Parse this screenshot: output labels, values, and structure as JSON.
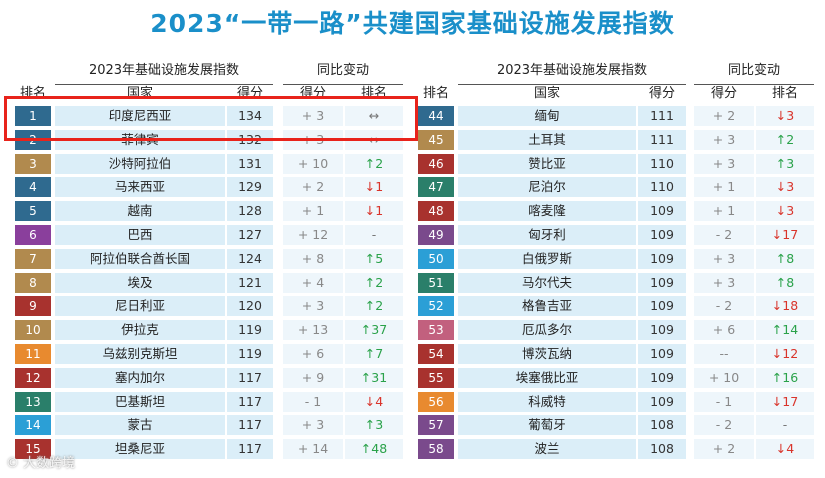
{
  "title": "2023“一带一路”共建国家基础设施发展指数",
  "headers": {
    "group_index": "2023年基础设施发展指数",
    "group_change": "同比变动",
    "rank": "排名",
    "country": "国家",
    "score": "得分",
    "chg_score": "得分",
    "chg_rank": "排名"
  },
  "left_rows": [
    {
      "rank": "1",
      "country": "印度尼西亚",
      "score": "134",
      "chg": "+ 3",
      "move": "↔",
      "dir": "flat",
      "color": "#2f6a8f"
    },
    {
      "rank": "2",
      "country": "菲律宾",
      "score": "132",
      "chg": "+ 3",
      "move": "↔",
      "dir": "flat",
      "color": "#2f6a8f"
    },
    {
      "rank": "3",
      "country": "沙特阿拉伯",
      "score": "131",
      "chg": "+ 10",
      "move": "↑2",
      "dir": "up",
      "color": "#b18a4e"
    },
    {
      "rank": "4",
      "country": "马来西亚",
      "score": "129",
      "chg": "+ 2",
      "move": "↓1",
      "dir": "down",
      "color": "#2f6a8f"
    },
    {
      "rank": "5",
      "country": "越南",
      "score": "128",
      "chg": "+ 1",
      "move": "↓1",
      "dir": "down",
      "color": "#2f6a8f"
    },
    {
      "rank": "6",
      "country": "巴西",
      "score": "127",
      "chg": "+ 12",
      "move": "-",
      "dir": "flat",
      "color": "#8a3f9c"
    },
    {
      "rank": "7",
      "country": "阿拉伯联合酋长国",
      "score": "124",
      "chg": "+ 8",
      "move": "↑5",
      "dir": "up",
      "color": "#b18a4e"
    },
    {
      "rank": "8",
      "country": "埃及",
      "score": "121",
      "chg": "+ 4",
      "move": "↑2",
      "dir": "up",
      "color": "#b18a4e"
    },
    {
      "rank": "9",
      "country": "尼日利亚",
      "score": "120",
      "chg": "+ 3",
      "move": "↑2",
      "dir": "up",
      "color": "#a8322e"
    },
    {
      "rank": "10",
      "country": "伊拉克",
      "score": "119",
      "chg": "+ 13",
      "move": "↑37",
      "dir": "up",
      "color": "#b18a4e"
    },
    {
      "rank": "11",
      "country": "乌兹别克斯坦",
      "score": "119",
      "chg": "+ 6",
      "move": "↑7",
      "dir": "up",
      "color": "#e88a2f"
    },
    {
      "rank": "12",
      "country": "塞内加尔",
      "score": "117",
      "chg": "+ 9",
      "move": "↑31",
      "dir": "up",
      "color": "#a8322e"
    },
    {
      "rank": "13",
      "country": "巴基斯坦",
      "score": "117",
      "chg": "- 1",
      "move": "↓4",
      "dir": "down",
      "color": "#2a7f6a"
    },
    {
      "rank": "14",
      "country": "蒙古",
      "score": "117",
      "chg": "+ 3",
      "move": "↑3",
      "dir": "up",
      "color": "#2b9fd6"
    },
    {
      "rank": "15",
      "country": "坦桑尼亚",
      "score": "117",
      "chg": "+ 14",
      "move": "↑48",
      "dir": "up",
      "color": "#a8322e"
    }
  ],
  "right_rows": [
    {
      "rank": "44",
      "country": "缅甸",
      "score": "111",
      "chg": "+ 2",
      "move": "↓3",
      "dir": "down",
      "color": "#2f6a8f"
    },
    {
      "rank": "45",
      "country": "土耳其",
      "score": "111",
      "chg": "+ 3",
      "move": "↑2",
      "dir": "up",
      "color": "#b18a4e"
    },
    {
      "rank": "46",
      "country": "赞比亚",
      "score": "110",
      "chg": "+ 3",
      "move": "↑3",
      "dir": "up",
      "color": "#a8322e"
    },
    {
      "rank": "47",
      "country": "尼泊尔",
      "score": "110",
      "chg": "+ 1",
      "move": "↓3",
      "dir": "down",
      "color": "#2a7f6a"
    },
    {
      "rank": "48",
      "country": "喀麦隆",
      "score": "109",
      "chg": "+ 1",
      "move": "↓3",
      "dir": "down",
      "color": "#a8322e"
    },
    {
      "rank": "49",
      "country": "匈牙利",
      "score": "109",
      "chg": "- 2",
      "move": "↓17",
      "dir": "down",
      "color": "#7a4a8c"
    },
    {
      "rank": "50",
      "country": "白俄罗斯",
      "score": "109",
      "chg": "+ 3",
      "move": "↑8",
      "dir": "up",
      "color": "#2b9fd6"
    },
    {
      "rank": "51",
      "country": "马尔代夫",
      "score": "109",
      "chg": "+ 3",
      "move": "↑8",
      "dir": "up",
      "color": "#2a7f6a"
    },
    {
      "rank": "52",
      "country": "格鲁吉亚",
      "score": "109",
      "chg": "- 2",
      "move": "↓18",
      "dir": "down",
      "color": "#2b9fd6"
    },
    {
      "rank": "53",
      "country": "厄瓜多尔",
      "score": "109",
      "chg": "+ 6",
      "move": "↑14",
      "dir": "up",
      "color": "#c2607e"
    },
    {
      "rank": "54",
      "country": "博茨瓦纳",
      "score": "109",
      "chg": "--",
      "move": "↓12",
      "dir": "down",
      "color": "#a8322e"
    },
    {
      "rank": "55",
      "country": "埃塞俄比亚",
      "score": "109",
      "chg": "+ 10",
      "move": "↑16",
      "dir": "up",
      "color": "#a8322e"
    },
    {
      "rank": "56",
      "country": "科威特",
      "score": "109",
      "chg": "- 1",
      "move": "↓17",
      "dir": "down",
      "color": "#e88a2f"
    },
    {
      "rank": "57",
      "country": "葡萄牙",
      "score": "108",
      "chg": "- 2",
      "move": "-",
      "dir": "flat",
      "color": "#7a4a8c"
    },
    {
      "rank": "58",
      "country": "波兰",
      "score": "108",
      "chg": "+ 2",
      "move": "↓4",
      "dir": "down",
      "color": "#7a4a8c"
    }
  ],
  "watermark": "© 大数跨境"
}
